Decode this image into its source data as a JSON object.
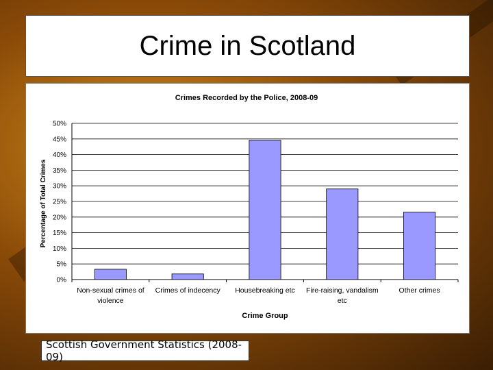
{
  "slide": {
    "title": "Crime in Scotland",
    "source": "Scottish Government Statistics (2008-09)"
  },
  "colors": {
    "bar_fill": "#9999ff",
    "bar_stroke": "#000000",
    "grid": "#000000"
  },
  "chart_data": {
    "type": "bar",
    "title": "Crimes Recorded by the Police, 2008-09",
    "xlabel": "Crime Group",
    "ylabel": "Percentage of Total Crimes",
    "categories": [
      [
        "Non-sexual crimes of",
        "violence"
      ],
      [
        "Crimes of indecency"
      ],
      [
        "Housebreaking etc"
      ],
      [
        "Fire-raising, vandalism",
        "etc"
      ],
      [
        "Other crimes"
      ]
    ],
    "values": [
      3.3,
      1.8,
      44.6,
      29.0,
      21.6
    ],
    "ylim": [
      0,
      50
    ],
    "yticks": [
      0,
      5,
      10,
      15,
      20,
      25,
      30,
      35,
      40,
      45,
      50
    ],
    "ytick_labels": [
      "0%",
      "5%",
      "10%",
      "15%",
      "20%",
      "25%",
      "30%",
      "35%",
      "40%",
      "45%",
      "50%"
    ],
    "grid": true,
    "legend": false
  }
}
